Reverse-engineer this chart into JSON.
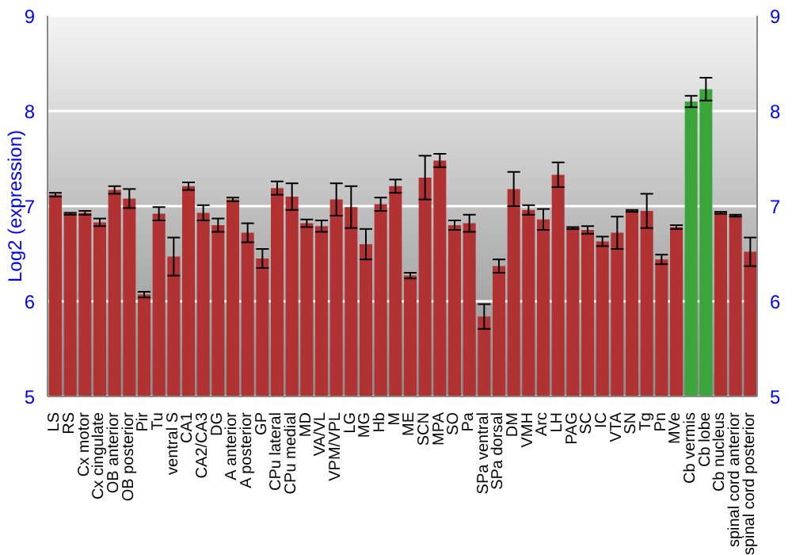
{
  "chart_data": {
    "type": "bar",
    "ylabel": "Log2 (expression)",
    "categories": [
      "LS",
      "RS",
      "Cx motor",
      "Cx cingulate",
      "OB anterior",
      "OB posterior",
      "Pir",
      "Tu",
      "ventral S",
      "CA1",
      "CA2/CA3",
      "DG",
      "A anterior",
      "A posterior",
      "GP",
      "CPu lateral",
      "CPu medial",
      "MD",
      "VA/VL",
      "VPM/VPL",
      "LG",
      "MG",
      "Hb",
      "M",
      "ME",
      "SCN",
      "MPA",
      "SO",
      "Pa",
      "SPa ventral",
      "SPa dorsal",
      "DM",
      "VMH",
      "Arc",
      "LH",
      "PAG",
      "SC",
      "IC",
      "VTA",
      "SN",
      "Tg",
      "Pn",
      "MVe",
      "Cb vermis",
      "Cb lobe",
      "Cb nucleus",
      "spinal cord anterior",
      "spinal cord posterior"
    ],
    "values": [
      7.12,
      6.92,
      6.93,
      6.83,
      7.17,
      7.08,
      6.07,
      6.92,
      6.47,
      7.21,
      6.93,
      6.8,
      7.07,
      6.72,
      6.45,
      7.19,
      7.1,
      6.82,
      6.79,
      7.07,
      6.99,
      6.6,
      7.02,
      7.21,
      6.27,
      7.3,
      7.48,
      6.8,
      6.82,
      5.84,
      6.37,
      7.18,
      6.96,
      6.86,
      7.33,
      6.77,
      6.75,
      6.63,
      6.72,
      6.95,
      6.95,
      6.44,
      6.78,
      8.1,
      8.23,
      6.93,
      6.9,
      6.52
    ],
    "errors": [
      0.02,
      0.01,
      0.02,
      0.04,
      0.04,
      0.1,
      0.03,
      0.07,
      0.2,
      0.04,
      0.08,
      0.07,
      0.02,
      0.1,
      0.1,
      0.07,
      0.14,
      0.04,
      0.06,
      0.17,
      0.22,
      0.16,
      0.07,
      0.07,
      0.03,
      0.23,
      0.07,
      0.05,
      0.09,
      0.13,
      0.07,
      0.18,
      0.05,
      0.11,
      0.13,
      0.01,
      0.04,
      0.05,
      0.17,
      0.01,
      0.18,
      0.05,
      0.02,
      0.06,
      0.12,
      0.01,
      0.01,
      0.15
    ],
    "colors": [
      "#b03232",
      "#b03232",
      "#b03232",
      "#b03232",
      "#b03232",
      "#b03232",
      "#b03232",
      "#b03232",
      "#b03232",
      "#b03232",
      "#b03232",
      "#b03232",
      "#b03232",
      "#b03232",
      "#b03232",
      "#b03232",
      "#b03232",
      "#b03232",
      "#b03232",
      "#b03232",
      "#b03232",
      "#b03232",
      "#b03232",
      "#b03232",
      "#b03232",
      "#b03232",
      "#b03232",
      "#b03232",
      "#b03232",
      "#b03232",
      "#b03232",
      "#b03232",
      "#b03232",
      "#b03232",
      "#b03232",
      "#b03232",
      "#b03232",
      "#b03232",
      "#b03232",
      "#b03232",
      "#b03232",
      "#b03232",
      "#b03232",
      "#3aa63a",
      "#3aa63a",
      "#b03232",
      "#b03232",
      "#b03232"
    ],
    "ylim": [
      5,
      9
    ],
    "yticks": [
      5,
      6,
      7,
      8,
      9
    ],
    "y2lim": [
      5,
      9
    ],
    "y2ticks": [
      5,
      6,
      7,
      8,
      9
    ],
    "grid": "y",
    "legend": false
  }
}
